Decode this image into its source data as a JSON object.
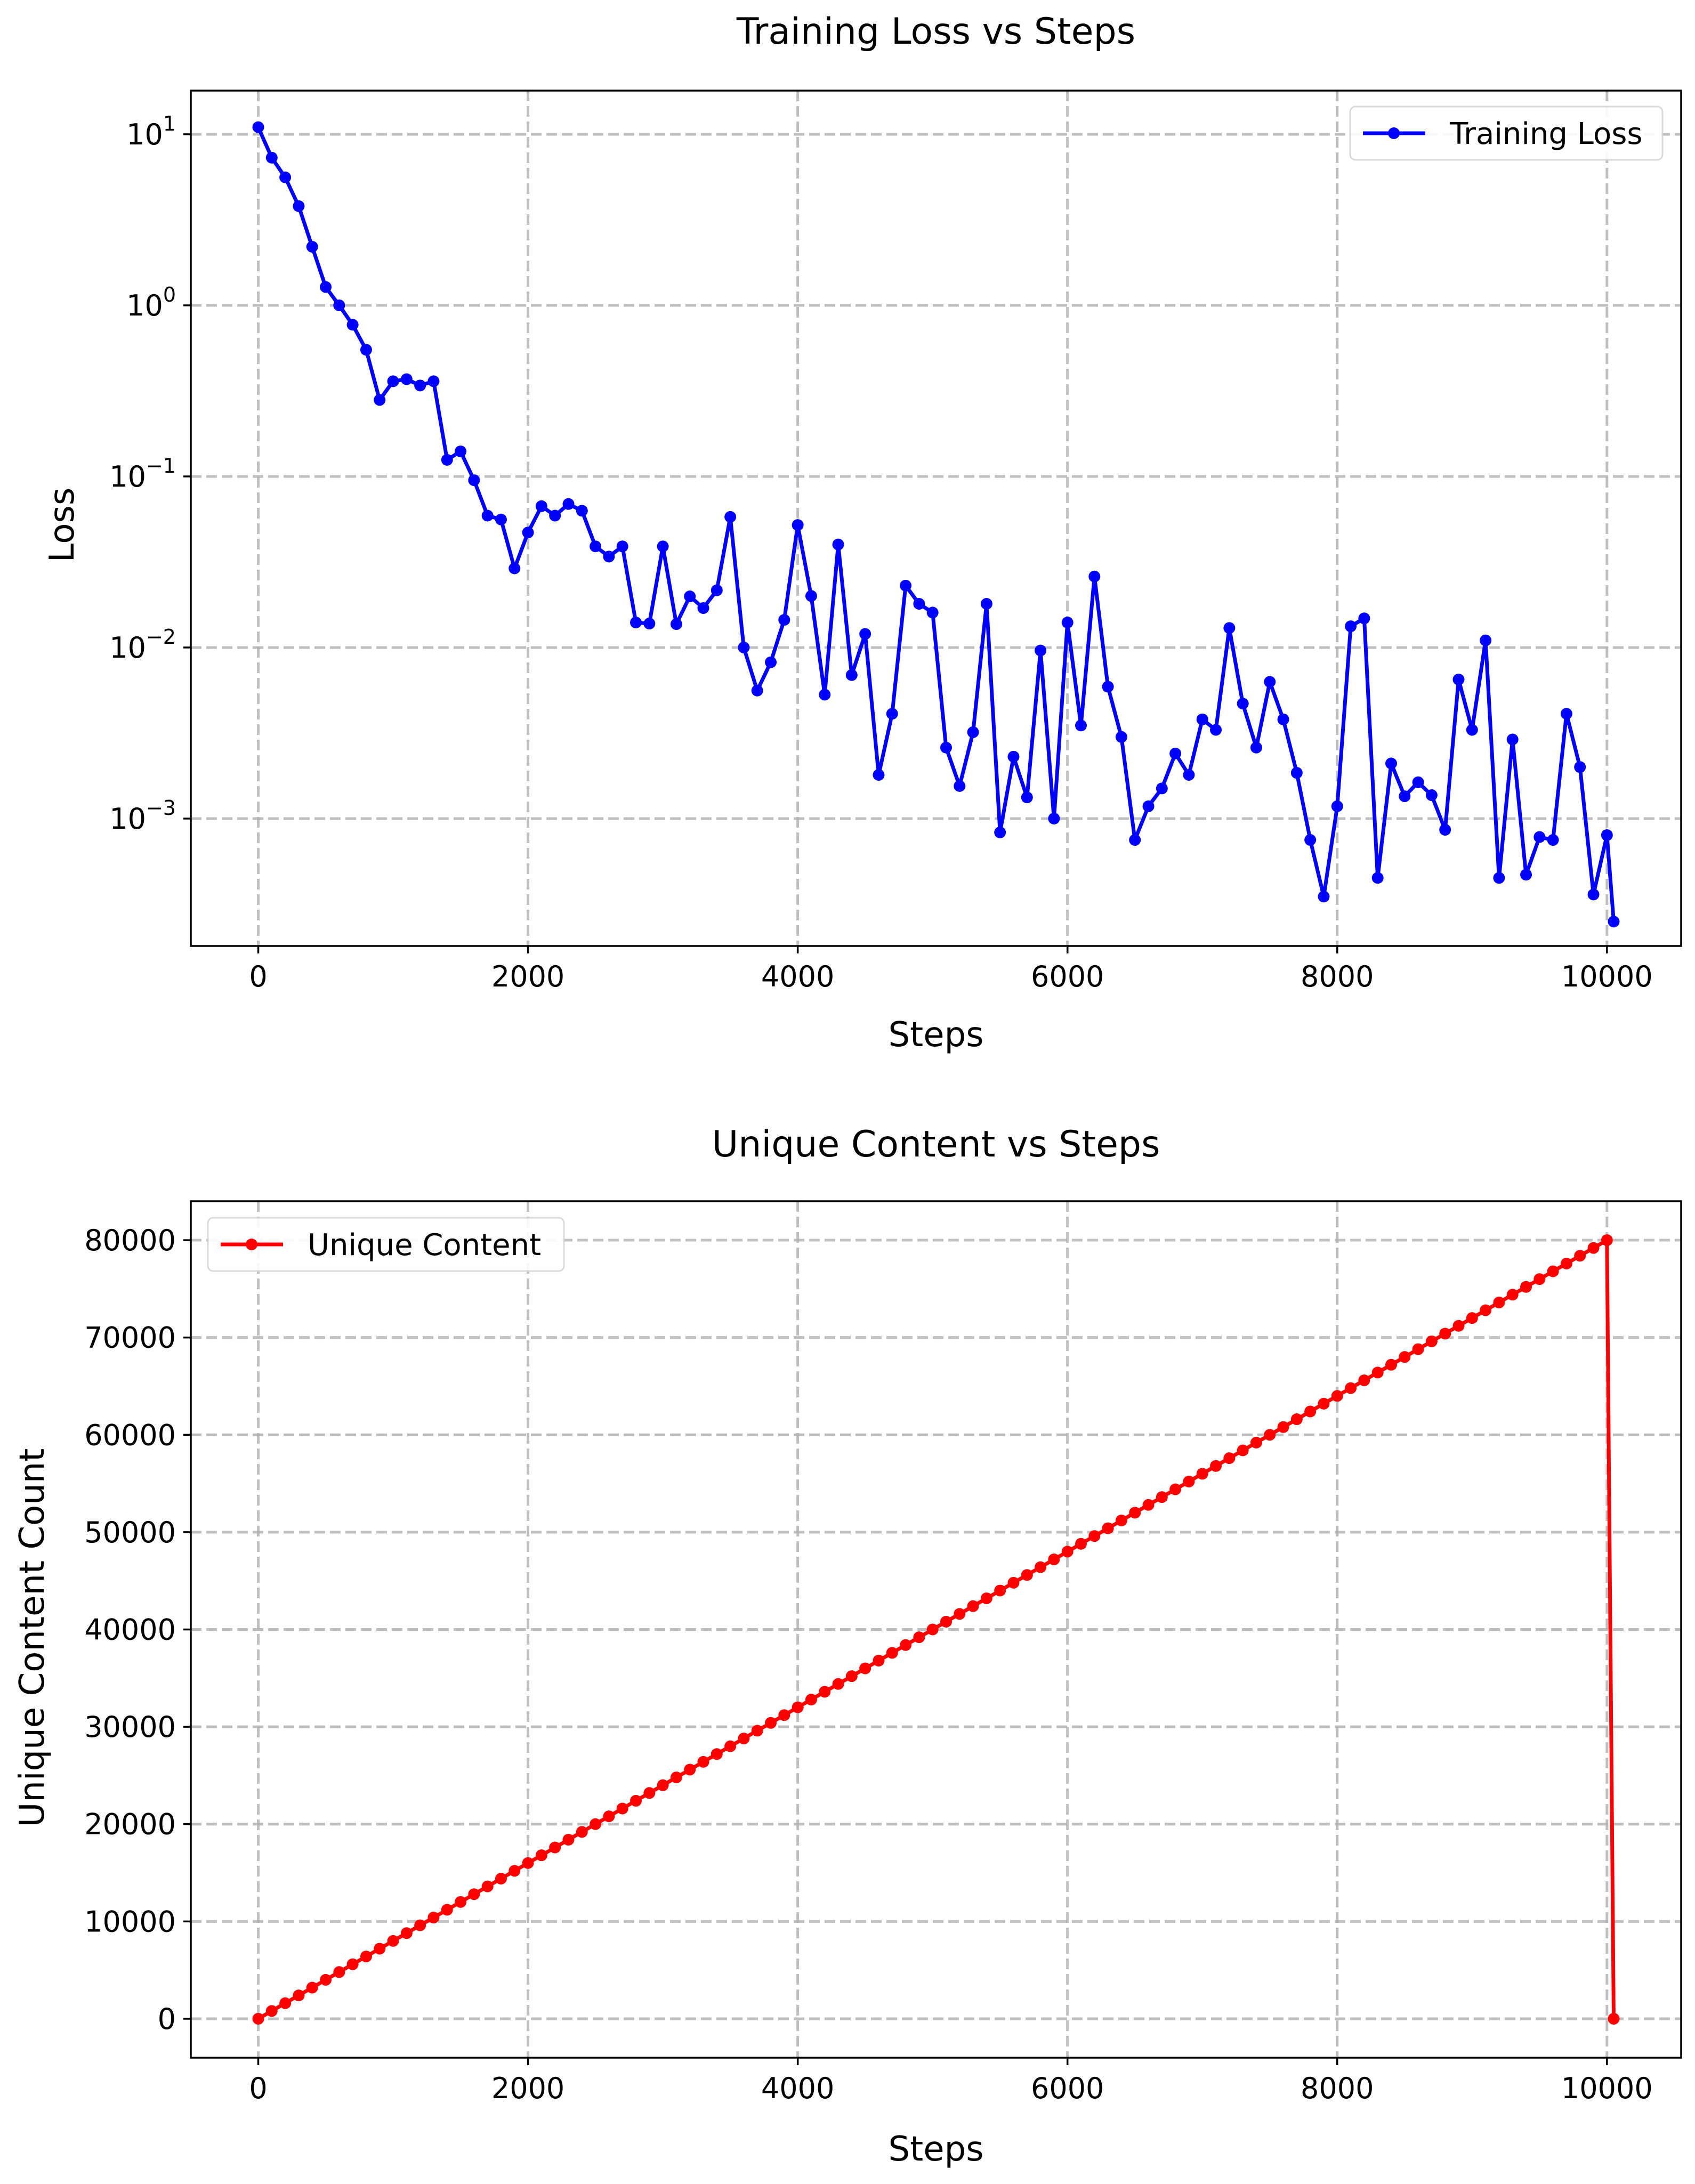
{
  "chart_data": [
    {
      "type": "line",
      "title": "Training Loss vs Steps",
      "xlabel": "Steps",
      "ylabel": "Loss",
      "yscale": "log",
      "xlim": [
        -500,
        10550
      ],
      "ylim": [
        0.00018,
        18
      ],
      "x_ticks": [
        0,
        2000,
        4000,
        6000,
        8000,
        10000
      ],
      "y_ticks": [
        {
          "value": 0.001,
          "base": "10",
          "exp": "−3"
        },
        {
          "value": 0.01,
          "base": "10",
          "exp": "−2"
        },
        {
          "value": 0.1,
          "base": "10",
          "exp": "−1"
        },
        {
          "value": 1,
          "base": "10",
          "exp": "0"
        },
        {
          "value": 10,
          "base": "10",
          "exp": "1"
        }
      ],
      "grid": true,
      "legend": {
        "placement": "top-right"
      },
      "series": [
        {
          "name": "Training Loss",
          "color": "#0000ff",
          "x": [
            0,
            100,
            200,
            300,
            400,
            500,
            600,
            700,
            800,
            900,
            1000,
            1100,
            1200,
            1300,
            1400,
            1500,
            1600,
            1700,
            1800,
            1900,
            2000,
            2100,
            2200,
            2300,
            2400,
            2500,
            2600,
            2700,
            2800,
            2900,
            3000,
            3100,
            3200,
            3300,
            3400,
            3500,
            3600,
            3700,
            3800,
            3900,
            4000,
            4100,
            4200,
            4300,
            4400,
            4500,
            4600,
            4700,
            4800,
            4900,
            5000,
            5100,
            5200,
            5300,
            5400,
            5500,
            5600,
            5700,
            5800,
            5900,
            6000,
            6100,
            6200,
            6300,
            6400,
            6500,
            6600,
            6700,
            6800,
            6900,
            7000,
            7100,
            7200,
            7300,
            7400,
            7500,
            7600,
            7700,
            7800,
            7900,
            8000,
            8100,
            8200,
            8300,
            8400,
            8500,
            8600,
            8700,
            8800,
            8900,
            9000,
            9100,
            9200,
            9300,
            9400,
            9500,
            9600,
            9700,
            9800,
            9900,
            10000,
            10050
          ],
          "values": [
            11,
            7.3,
            5.6,
            3.8,
            2.2,
            1.28,
            1.0,
            0.77,
            0.55,
            0.28,
            0.36,
            0.37,
            0.34,
            0.36,
            0.125,
            0.14,
            0.095,
            0.059,
            0.056,
            0.029,
            0.047,
            0.067,
            0.059,
            0.069,
            0.063,
            0.039,
            0.034,
            0.039,
            0.014,
            0.0138,
            0.039,
            0.0137,
            0.0199,
            0.017,
            0.0216,
            0.058,
            0.01,
            0.0056,
            0.0082,
            0.0145,
            0.052,
            0.02,
            0.0053,
            0.04,
            0.0069,
            0.012,
            0.0018,
            0.0041,
            0.023,
            0.018,
            0.016,
            0.0026,
            0.00155,
            0.0032,
            0.018,
            0.00083,
            0.0023,
            0.00133,
            0.0096,
            0.001,
            0.014,
            0.0035,
            0.026,
            0.0059,
            0.003,
            0.00075,
            0.00118,
            0.0015,
            0.0024,
            0.0018,
            0.0038,
            0.0033,
            0.013,
            0.0047,
            0.0026,
            0.0063,
            0.0038,
            0.00185,
            0.00075,
            0.00035,
            0.00118,
            0.0133,
            0.0148,
            0.00045,
            0.0021,
            0.00135,
            0.00163,
            0.00137,
            0.00086,
            0.0065,
            0.0033,
            0.011,
            0.00045,
            0.0029,
            0.00047,
            0.00078,
            0.00075,
            0.0041,
            0.002,
            0.00036,
            0.0008,
            0.00025
          ]
        }
      ]
    },
    {
      "type": "line",
      "title": "Unique Content vs Steps",
      "xlabel": "Steps",
      "ylabel": "Unique Content Count",
      "yscale": "linear",
      "xlim": [
        -500,
        10550
      ],
      "ylim": [
        -4000,
        84000
      ],
      "x_ticks": [
        0,
        2000,
        4000,
        6000,
        8000,
        10000
      ],
      "y_ticks": [
        0,
        10000,
        20000,
        30000,
        40000,
        50000,
        60000,
        70000,
        80000
      ],
      "grid": true,
      "legend": {
        "placement": "top-left"
      },
      "series": [
        {
          "name": "Unique Content",
          "color": "#ff0000",
          "x_start": 0,
          "x_step": 100,
          "x_end": 10000,
          "value_per_step": 8,
          "final_point": {
            "x": 10050,
            "value": 0
          }
        }
      ]
    }
  ]
}
